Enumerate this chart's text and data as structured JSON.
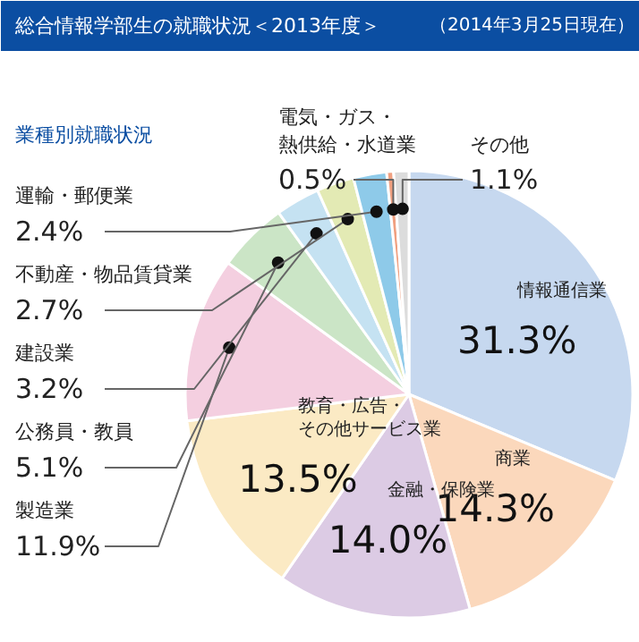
{
  "chart_data": {
    "type": "pie",
    "title": "総合情報学部生の就職状況＜2013年度＞",
    "subtitle": "（2014年3月25日現在）",
    "annotations": [
      "業種別就職状況"
    ],
    "categories": [
      "情報通信業",
      "商業",
      "金融・保険業",
      "教育・広告・その他サービス業",
      "製造業",
      "公務員・教員",
      "建設業",
      "不動産・物品賃貸業",
      "運輸・郵便業",
      "電気・ガス・熱供給・水道業",
      "その他"
    ],
    "values": [
      31.3,
      14.3,
      14.0,
      13.5,
      11.9,
      5.1,
      3.2,
      2.7,
      2.4,
      0.5,
      1.1
    ],
    "colors": [
      "#c6d8ef",
      "#fbd8bc",
      "#dccbe4",
      "#fbeac4",
      "#f4cfe0",
      "#cbe5c6",
      "#c5e2f2",
      "#e3eab4",
      "#8ecae9",
      "#f0a080",
      "#dcdcdc"
    ],
    "value_labels": [
      "31.3%",
      "14.3%",
      "14.0%",
      "13.5%",
      "11.9%",
      "5.1%",
      "3.2%",
      "2.7%",
      "2.4%",
      "0.5%",
      "1.1%"
    ]
  }
}
